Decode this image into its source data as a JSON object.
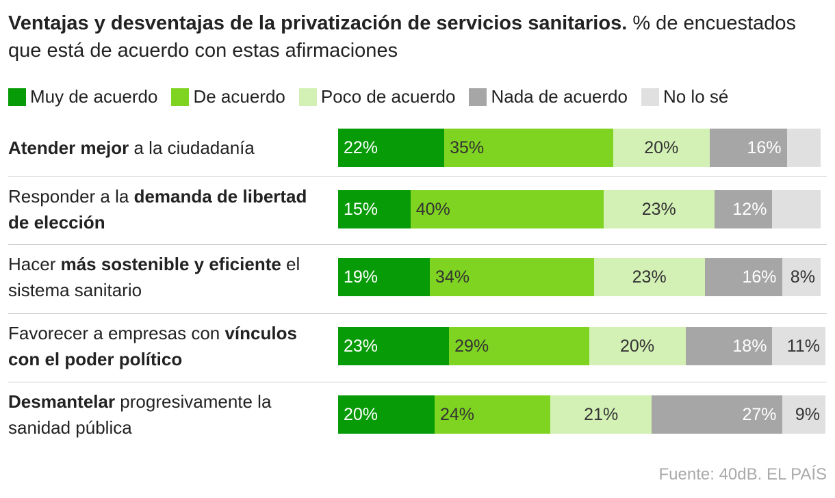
{
  "chart_data": {
    "type": "stacked-bar",
    "title": "Ventajas y desventajas de la privatización de servicios sanitarios.",
    "subtitle": "% de encuestados que está de acuerdo con estas afirmaciones",
    "source": "Fuente: 40dB. EL PAÍS",
    "categories": [
      [
        {
          "text": "Atender mejor",
          "bold": true
        },
        {
          "text": " a la ciudadanía",
          "bold": false
        }
      ],
      [
        {
          "text": "Responder a la ",
          "bold": false
        },
        {
          "text": "demanda de libertad de elección",
          "bold": true
        }
      ],
      [
        {
          "text": "Hacer ",
          "bold": false
        },
        {
          "text": "más sostenible y eficiente",
          "bold": true
        },
        {
          "text": " el sistema sanitario",
          "bold": false
        }
      ],
      [
        {
          "text": "Favorecer a empresas con ",
          "bold": false
        },
        {
          "text": "vínculos con el poder político",
          "bold": true
        }
      ],
      [
        {
          "text": "Desmantelar",
          "bold": true
        },
        {
          "text": " progresivamente la sanidad pública",
          "bold": false
        }
      ]
    ],
    "series": [
      {
        "name": "Muy de acuerdo",
        "color": "#089b08",
        "values": [
          22,
          15,
          19,
          23,
          20
        ],
        "value_labels": [
          "22%",
          "15%",
          "19%",
          "23%",
          "20%"
        ]
      },
      {
        "name": "De acuerdo",
        "color": "#7fd321",
        "values": [
          35,
          40,
          34,
          29,
          24
        ],
        "value_labels": [
          "35%",
          "40%",
          "34%",
          "29%",
          "24%"
        ]
      },
      {
        "name": "Poco de acuerdo",
        "color": "#d3f0b5",
        "values": [
          20,
          23,
          23,
          20,
          21
        ],
        "value_labels": [
          "20%",
          "23%",
          "23%",
          "20%",
          "21%"
        ]
      },
      {
        "name": "Nada de acuerdo",
        "color": "#a6a6a6",
        "values": [
          16,
          12,
          16,
          18,
          27
        ],
        "value_labels": [
          "16%",
          "12%",
          "16%",
          "18%",
          "27%"
        ]
      },
      {
        "name": "No lo sé",
        "color": "#e0e0e0",
        "values": [
          7,
          10,
          8,
          11,
          9
        ],
        "value_labels": [
          null,
          null,
          "8%",
          "11%",
          "9%"
        ]
      }
    ],
    "xlim": [
      0,
      101
    ]
  }
}
